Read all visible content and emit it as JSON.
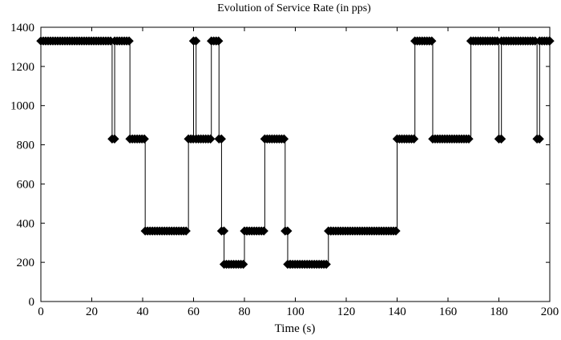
{
  "chart_data": {
    "type": "line",
    "title": "Evolution of Service Rate (in pps)",
    "xlabel": "Time (s)",
    "ylabel": "",
    "xlim": [
      0,
      200
    ],
    "ylim": [
      0,
      1400
    ],
    "xticks": [
      0,
      20,
      40,
      60,
      80,
      100,
      120,
      140,
      160,
      180,
      200
    ],
    "yticks": [
      0,
      200,
      400,
      600,
      800,
      1000,
      1200,
      1400
    ],
    "grid": false,
    "legend": "none",
    "line_color": "#000000",
    "marker": "diamond",
    "series": [
      {
        "x": [
          0,
          28,
          29,
          35,
          41,
          58,
          60,
          61,
          67,
          70,
          71,
          72,
          80,
          81,
          88,
          96,
          97,
          98,
          113,
          114,
          140,
          147,
          154,
          169,
          180,
          181,
          195,
          196,
          200
        ],
        "y": [
          1330,
          830,
          1330,
          830,
          360,
          830,
          1330,
          830,
          1330,
          830,
          360,
          190,
          360,
          360,
          830,
          360,
          190,
          190,
          360,
          360,
          830,
          1330,
          830,
          1330,
          830,
          1330,
          830,
          1330,
          1330
        ]
      }
    ]
  }
}
